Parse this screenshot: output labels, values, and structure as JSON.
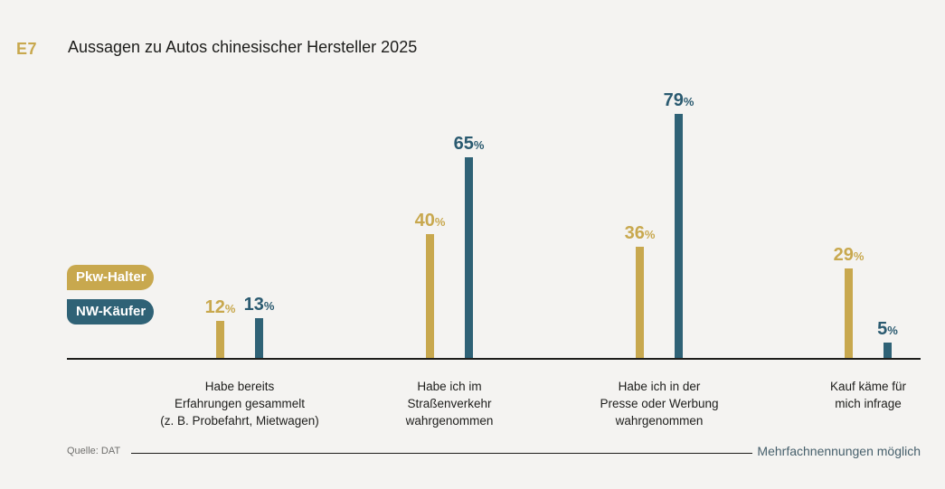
{
  "header": {
    "code": "E7",
    "title": "Aussagen zu Autos chinesischer Hersteller 2025"
  },
  "legend": {
    "items": [
      {
        "label": "Pkw-Halter",
        "color": "#c8a84e"
      },
      {
        "label": "NW-Käufer",
        "color": "#2f6276"
      }
    ],
    "position": "left"
  },
  "footer": {
    "source": "Quelle: DAT",
    "note": "Mehrfachnennungen möglich"
  },
  "colors": {
    "background": "#f4f3f1",
    "gold": "#c8a84e",
    "teal": "#2f6276",
    "gold_text": "#c8a84e",
    "teal_text": "#2a5a70",
    "axis": "#1d1d1b"
  },
  "chart_data": {
    "type": "bar",
    "title": "Aussagen zu Autos chinesischer Hersteller 2025",
    "unit": "%",
    "categories": [
      "Habe bereits Erfahrungen gesammelt (z. B. Probefahrt, Mietwagen)",
      "Habe ich im Straßenverkehr wahrgenommen",
      "Habe ich in der Presse oder Werbung wahrgenommen",
      "Kauf käme für mich infrage"
    ],
    "category_lines": [
      [
        "Habe bereits",
        "Erfahrungen gesammelt",
        "(z. B. Probefahrt, Mietwagen)"
      ],
      [
        "Habe ich im",
        "Straßenverkehr",
        "wahrgenommen"
      ],
      [
        "Habe ich in der",
        "Presse oder Werbung",
        "wahrgenommen"
      ],
      [
        "Kauf käme für",
        "mich infrage"
      ]
    ],
    "series": [
      {
        "name": "Pkw-Halter",
        "color": "#c8a84e",
        "values": [
          12,
          40,
          36,
          29
        ]
      },
      {
        "name": "NW-Käufer",
        "color": "#2f6276",
        "values": [
          13,
          65,
          79,
          5
        ]
      }
    ],
    "ylim": [
      0,
      100
    ],
    "grid": false,
    "data_labels": true,
    "legend_position": "left"
  }
}
